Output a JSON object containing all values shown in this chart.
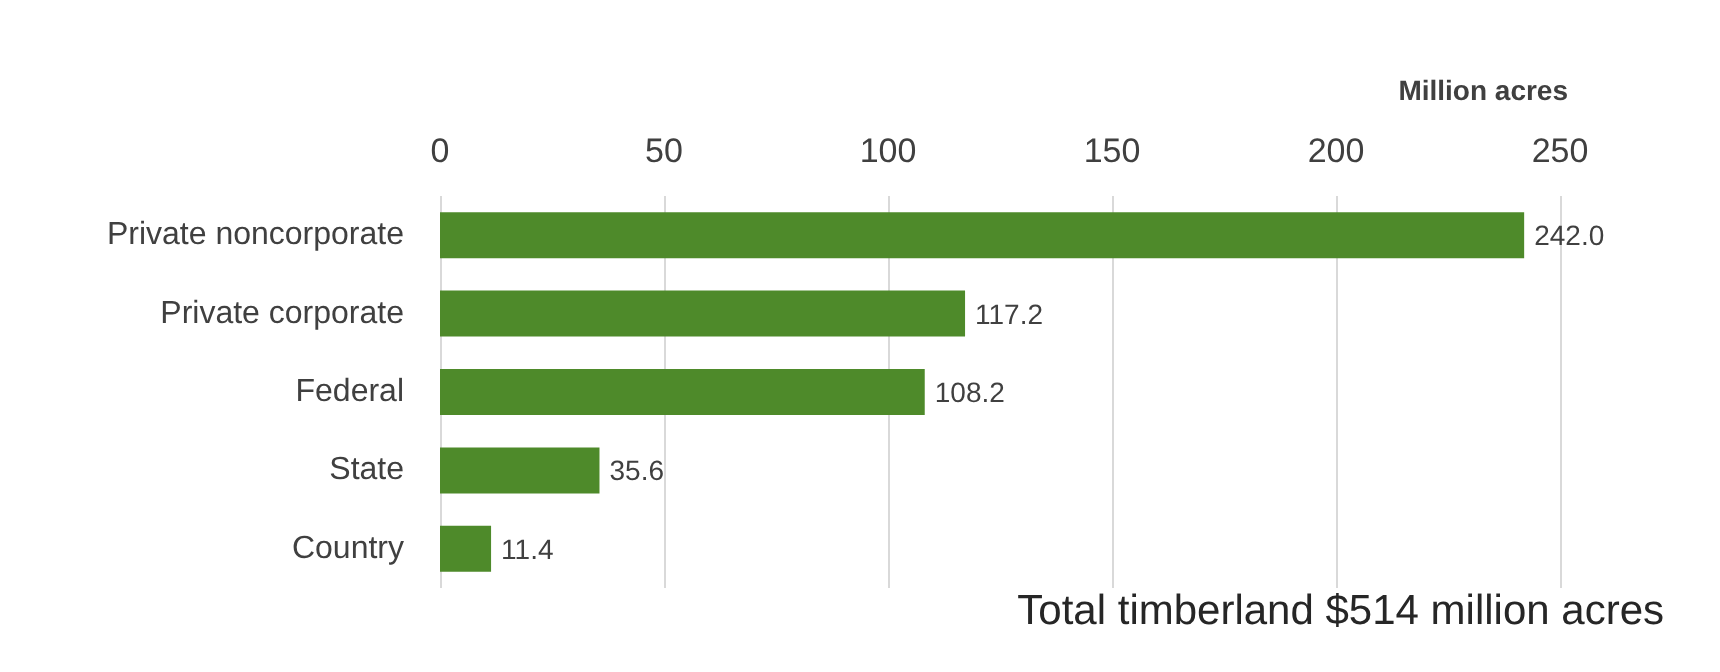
{
  "chart_data": {
    "type": "bar",
    "orientation": "horizontal",
    "categories": [
      "Private noncorporate",
      "Private corporate",
      "Federal",
      "State",
      "Country"
    ],
    "values": [
      242.0,
      117.2,
      108.2,
      35.6,
      11.4
    ],
    "value_labels": [
      "242.0",
      "117.2",
      "108.2",
      "35.6",
      "11.4"
    ],
    "color": "#4e8a2a",
    "xlim": [
      0,
      250
    ],
    "xticks": [
      0,
      50,
      100,
      150,
      200,
      250
    ],
    "xlabel": "Million acres",
    "annotations": [
      "Total timberland $514 million acres"
    ],
    "grid": "x"
  }
}
